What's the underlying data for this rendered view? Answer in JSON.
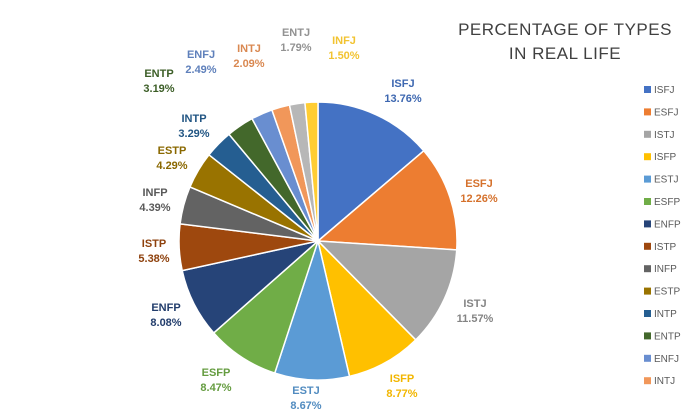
{
  "chart_data": {
    "type": "pie",
    "title": [
      "PERCENTAGE  OF TYPES",
      "IN REAL LIFE"
    ],
    "legend_position": "right",
    "slices": [
      {
        "label": "ISFJ",
        "value": 13.76,
        "display": "13.76%",
        "color": "#4472C4"
      },
      {
        "label": "ESFJ",
        "value": 12.26,
        "display": "12.26%",
        "color": "#ED7D31"
      },
      {
        "label": "ISTJ",
        "value": 11.57,
        "display": "11.57%",
        "color": "#A5A5A5"
      },
      {
        "label": "ISFP",
        "value": 8.77,
        "display": "8.77%",
        "color": "#FFC000"
      },
      {
        "label": "ESTJ",
        "value": 8.67,
        "display": "8.67%",
        "color": "#5B9BD5"
      },
      {
        "label": "ESFP",
        "value": 8.47,
        "display": "8.47%",
        "color": "#70AD47"
      },
      {
        "label": "ENFP",
        "value": 8.08,
        "display": "8.08%",
        "color": "#264478"
      },
      {
        "label": "ISTP",
        "value": 5.38,
        "display": "5.38%",
        "color": "#9E480E"
      },
      {
        "label": "INFP",
        "value": 4.39,
        "display": "4.39%",
        "color": "#636363"
      },
      {
        "label": "ESTP",
        "value": 4.29,
        "display": "4.29%",
        "color": "#997300"
      },
      {
        "label": "INTP",
        "value": 3.29,
        "display": "3.29%",
        "color": "#255E91"
      },
      {
        "label": "ENTP",
        "value": 3.19,
        "display": "3.19%",
        "color": "#43682B"
      },
      {
        "label": "ENFJ",
        "value": 2.49,
        "display": "2.49%",
        "color": "#698ED0"
      },
      {
        "label": "INTJ",
        "value": 2.09,
        "display": "2.09%",
        "color": "#F1975A"
      },
      {
        "label": "ENTJ",
        "value": 1.79,
        "display": "1.79%",
        "color": "#B7B7B7"
      },
      {
        "label": "INFJ",
        "value": 1.5,
        "display": "1.50%",
        "color": "#FFCD33"
      }
    ],
    "legend_entries": [
      "ISFJ",
      "ESFJ",
      "ISTJ",
      "ISFP",
      "ESTJ",
      "ESFP",
      "ENFP",
      "ISTP",
      "INFP",
      "ESTP",
      "INTP",
      "ENTP",
      "ENFJ",
      "INTJ"
    ]
  }
}
